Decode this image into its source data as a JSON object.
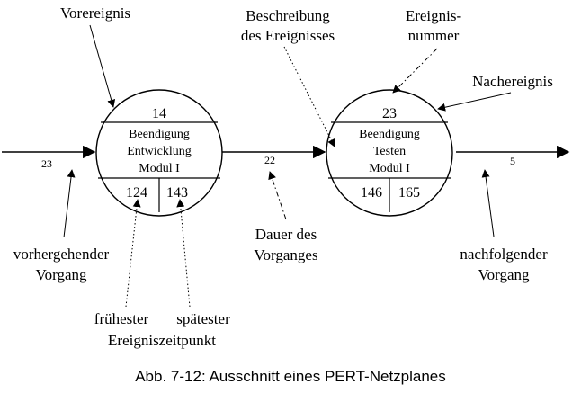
{
  "labels": {
    "vorereignis": "Vorereignis",
    "beschreibung_l1": "Beschreibung",
    "beschreibung_l2": "des Ereignisses",
    "ereignis_l1": "Ereignis-",
    "ereignis_l2": "nummer",
    "nachereignis": "Nachereignis",
    "vorhergehender_l1": "vorhergehender",
    "vorhergehender_l2": "Vorgang",
    "dauer_l1": "Dauer des",
    "dauer_l2": "Vorganges",
    "nachfolgender_l1": "nachfolgender",
    "nachfolgender_l2": "Vorgang",
    "fruehester": "frühester",
    "spaetester": "spätester",
    "ereigniszeitpunkt": "Ereigniszeitpunkt"
  },
  "events": [
    {
      "number": "14",
      "desc_l1": "Beendigung",
      "desc_l2": "Entwicklung",
      "desc_l3": "Modul I",
      "earliest": "124",
      "latest": "143"
    },
    {
      "number": "23",
      "desc_l1": "Beendigung",
      "desc_l2": "Testen",
      "desc_l3": "Modul I",
      "earliest": "146",
      "latest": "165"
    }
  ],
  "activities": {
    "incoming": "23",
    "between": "22",
    "outgoing": "5"
  },
  "caption": "Abb. 7-12: Ausschnitt eines PERT-Netzplanes"
}
